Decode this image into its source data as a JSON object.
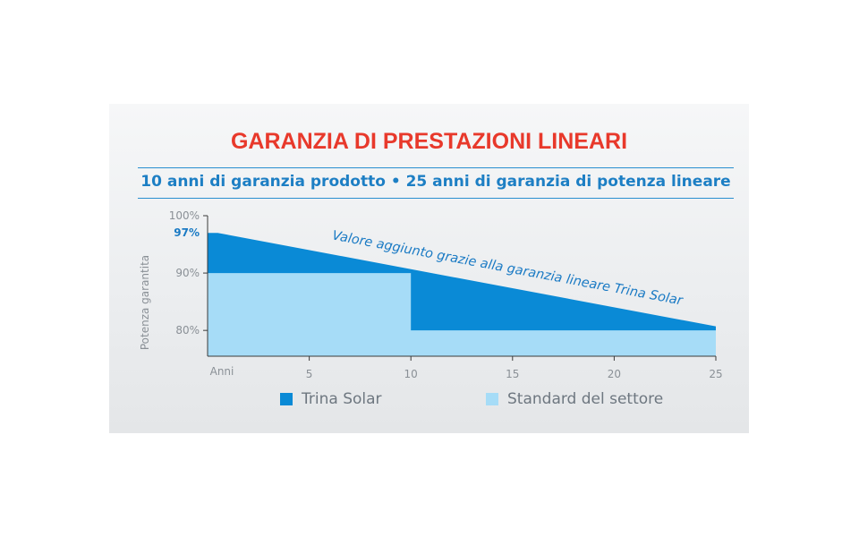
{
  "chart_data": {
    "type": "area",
    "title": "GARANZIA DI PRESTAZIONI LINEARI",
    "subtitle": "10 anni di garanzia prodotto • 25 anni di garanzia di potenza lineare",
    "xlabel": "Anni",
    "ylabel": "Potenza garantita",
    "xlim": [
      0,
      25
    ],
    "ylim": [
      75.5,
      100
    ],
    "x_ticks": [
      5,
      10,
      15,
      20,
      25
    ],
    "y_ticks": [
      {
        "value": 100,
        "label": "100%"
      },
      {
        "value": 97,
        "label": "97%",
        "highlight": true
      },
      {
        "value": 90,
        "label": "90%"
      },
      {
        "value": 80,
        "label": "80%"
      }
    ],
    "annotation": "Valore aggiunto grazie alla garanzia lineare Trina Solar",
    "legend_position": "bottom",
    "series": [
      {
        "name": "Trina Solar",
        "color": "#0a8ad6",
        "x": [
          0,
          0.5,
          25
        ],
        "y": [
          97,
          97,
          80.7
        ]
      },
      {
        "name": "Standard del settore",
        "color": "#a6dcf7",
        "x": [
          0,
          10,
          10,
          25
        ],
        "y": [
          90,
          90,
          80,
          80
        ]
      }
    ]
  }
}
